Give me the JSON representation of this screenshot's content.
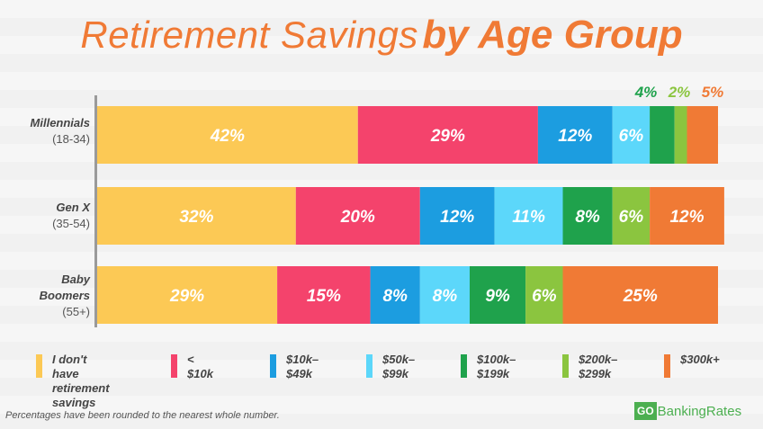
{
  "title": {
    "part1": "Retirement Savings",
    "part2": "by Age Group"
  },
  "chart_data": {
    "type": "bar",
    "orientation": "horizontal",
    "stacked": true,
    "categories": [
      {
        "name": "Millennials",
        "age": "(18-34)"
      },
      {
        "name": "Gen X",
        "age": "(35-54)"
      },
      {
        "name": "Baby Boomers",
        "age": "(55+)"
      }
    ],
    "series": [
      {
        "name": "I don't have retirement savings",
        "color": "#fcc955",
        "values": [
          42,
          32,
          29
        ]
      },
      {
        "name": "< $10k",
        "color": "#f4436c",
        "values": [
          29,
          20,
          15
        ]
      },
      {
        "name": "$10k–$49k",
        "color": "#1c9de0",
        "values": [
          12,
          12,
          8
        ]
      },
      {
        "name": "$50k–$99k",
        "color": "#5cd7fa",
        "values": [
          6,
          11,
          8
        ]
      },
      {
        "name": "$100k–$199k",
        "color": "#1fa24c",
        "values": [
          4,
          8,
          9
        ]
      },
      {
        "name": "$200k–$299k",
        "color": "#8bc53f",
        "values": [
          2,
          6,
          6
        ]
      },
      {
        "name": "$300k+",
        "color": "#f07a35",
        "values": [
          5,
          12,
          25
        ]
      }
    ],
    "value_labels": [
      [
        "42%",
        "29%",
        "12%",
        "6%",
        "4%",
        "2%",
        "5%"
      ],
      [
        "32%",
        "20%",
        "12%",
        "11%",
        "8%",
        "6%",
        "12%"
      ],
      [
        "29%",
        "15%",
        "8%",
        "8%",
        "9%",
        "6%",
        "25%"
      ]
    ],
    "legend_position": "bottom"
  },
  "legend": [
    {
      "label": "I don't have\nretirement\nsavings",
      "color": "#fcc955"
    },
    {
      "label": "< $10k",
      "color": "#f4436c"
    },
    {
      "label": "$10k–\n$49k",
      "color": "#1c9de0"
    },
    {
      "label": "$50k–\n$99k",
      "color": "#5cd7fa"
    },
    {
      "label": "$100k–\n$199k",
      "color": "#1fa24c"
    },
    {
      "label": "$200k–\n$299k",
      "color": "#8bc53f"
    },
    {
      "label": "$300k+",
      "color": "#f07a35"
    }
  ],
  "footnote": "Percentages  have been rounded to the nearest whole number.",
  "logo": {
    "go": "GO",
    "rest": "BankingRates"
  }
}
